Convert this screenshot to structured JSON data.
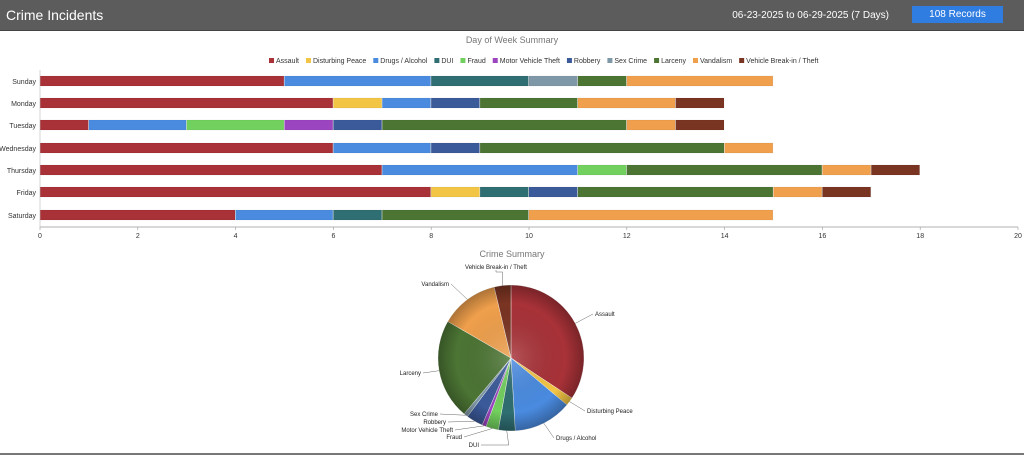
{
  "header": {
    "title": "Crime Incidents",
    "date_range": "06-23-2025 to 06-29-2025 (7 Days)",
    "records_button": "108 Records"
  },
  "colors": {
    "Assault": "#a83238",
    "Disturbing Peace": "#f2c544",
    "Drugs / Alcohol": "#4a8be0",
    "DUI": "#2f6e72",
    "Fraud": "#72d05e",
    "Motor Vehicle Theft": "#9c45c0",
    "Robbery": "#3b5a9a",
    "Sex Crime": "#7f98a8",
    "Larceny": "#4c7534",
    "Vandalism": "#f0a04c",
    "Vehicle Break-in / Theft": "#7a3422"
  },
  "chart_data": [
    {
      "type": "bar",
      "orientation": "horizontal",
      "stacked": true,
      "title": "Day of Week Summary",
      "categories": [
        "Sunday",
        "Monday",
        "Tuesday",
        "Wednesday",
        "Thursday",
        "Friday",
        "Saturday"
      ],
      "xlim": [
        0,
        20
      ],
      "xticks": [
        "0",
        "2",
        "4",
        "6",
        "8",
        "10",
        "12",
        "14",
        "16",
        "18",
        "20"
      ],
      "legend_position": "top",
      "grid": false,
      "series": [
        {
          "name": "Assault",
          "values": [
            5,
            6,
            1,
            6,
            7,
            8,
            4
          ]
        },
        {
          "name": "Disturbing Peace",
          "values": [
            0,
            1,
            0,
            0,
            0,
            1,
            0
          ]
        },
        {
          "name": "Drugs / Alcohol",
          "values": [
            3,
            1,
            2,
            2,
            4,
            0,
            2
          ]
        },
        {
          "name": "DUI",
          "values": [
            2,
            0,
            0,
            0,
            0,
            1,
            1
          ]
        },
        {
          "name": "Fraud",
          "values": [
            0,
            0,
            2,
            0,
            1,
            0,
            0
          ]
        },
        {
          "name": "Motor Vehicle Theft",
          "values": [
            0,
            0,
            1,
            0,
            0,
            0,
            0
          ]
        },
        {
          "name": "Robbery",
          "values": [
            0,
            1,
            1,
            1,
            0,
            1,
            0
          ]
        },
        {
          "name": "Sex Crime",
          "values": [
            1,
            0,
            0,
            0,
            0,
            0,
            0
          ]
        },
        {
          "name": "Larceny",
          "values": [
            1,
            2,
            5,
            5,
            4,
            4,
            3
          ]
        },
        {
          "name": "Vandalism",
          "values": [
            3,
            2,
            1,
            1,
            1,
            1,
            5
          ]
        },
        {
          "name": "Vehicle Break-in / Theft",
          "values": [
            0,
            1,
            1,
            0,
            1,
            1,
            0
          ]
        }
      ]
    },
    {
      "type": "pie",
      "title": "Crime Summary",
      "labels": [
        "Assault",
        "Disturbing Peace",
        "Drugs / Alcohol",
        "DUI",
        "Fraud",
        "Motor Vehicle Theft",
        "Robbery",
        "Sex Crime",
        "Larceny",
        "Vandalism",
        "Vehicle Break-in / Theft"
      ],
      "values": [
        37,
        2,
        14,
        4,
        3,
        1,
        4,
        1,
        24,
        14,
        4
      ]
    }
  ]
}
